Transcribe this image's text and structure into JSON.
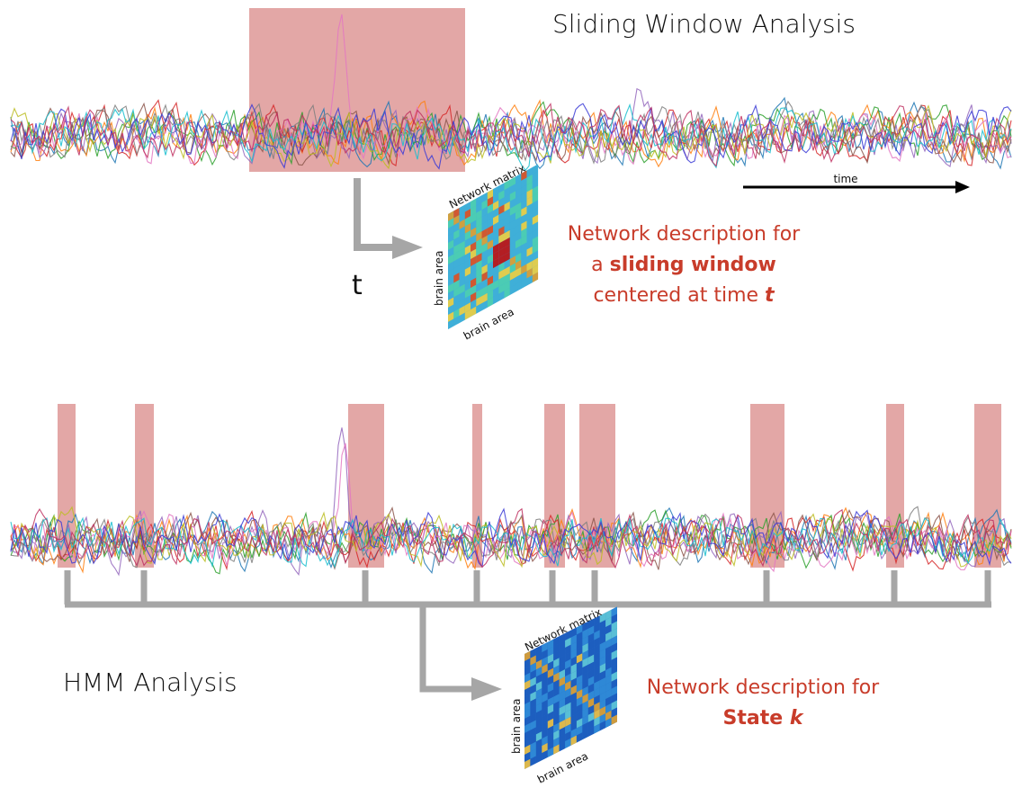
{
  "top": {
    "title": "Sliding Window Analysis",
    "time_label": "time",
    "t_label": "t",
    "matrix_title": "Network matrix",
    "matrix_xlabel": "brain area",
    "matrix_ylabel": "brain area",
    "description": {
      "line1": "Network description for",
      "line2_prefix": "a ",
      "line2_bold": "sliding window",
      "line3_prefix": "centered at time ",
      "line3_italic": "t"
    }
  },
  "bottom": {
    "title": "HMM Analysis",
    "matrix_title": "Network matrix",
    "matrix_xlabel": "brain area",
    "matrix_ylabel": "brain area",
    "description": {
      "line1": "Network description for",
      "line2_bold": "State ",
      "line2_italic": "k"
    }
  },
  "colors": {
    "window_fill": "#d98a88",
    "description_red": "#c83c2a",
    "connector_gray": "#a6a6a6",
    "arrow_black": "#000000"
  }
}
